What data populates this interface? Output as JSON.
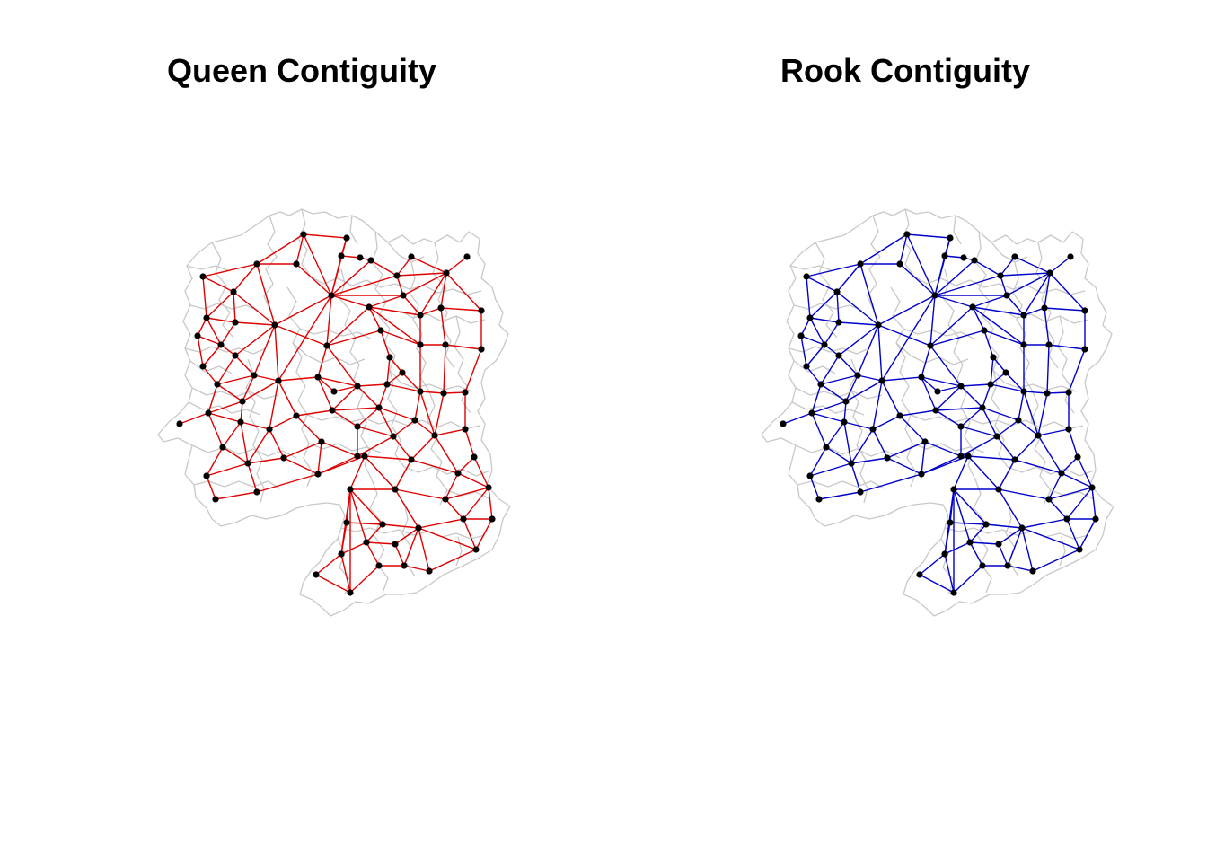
{
  "panels": [
    {
      "id": "queen",
      "title": "Queen Contiguity",
      "edge_color": "#e00000"
    },
    {
      "id": "rook",
      "title": "Rook Contiguity",
      "edge_color": "#0000cc"
    }
  ],
  "colors": {
    "boundary": "#c8c8c8",
    "node": "#000000",
    "background": "#ffffff"
  }
}
